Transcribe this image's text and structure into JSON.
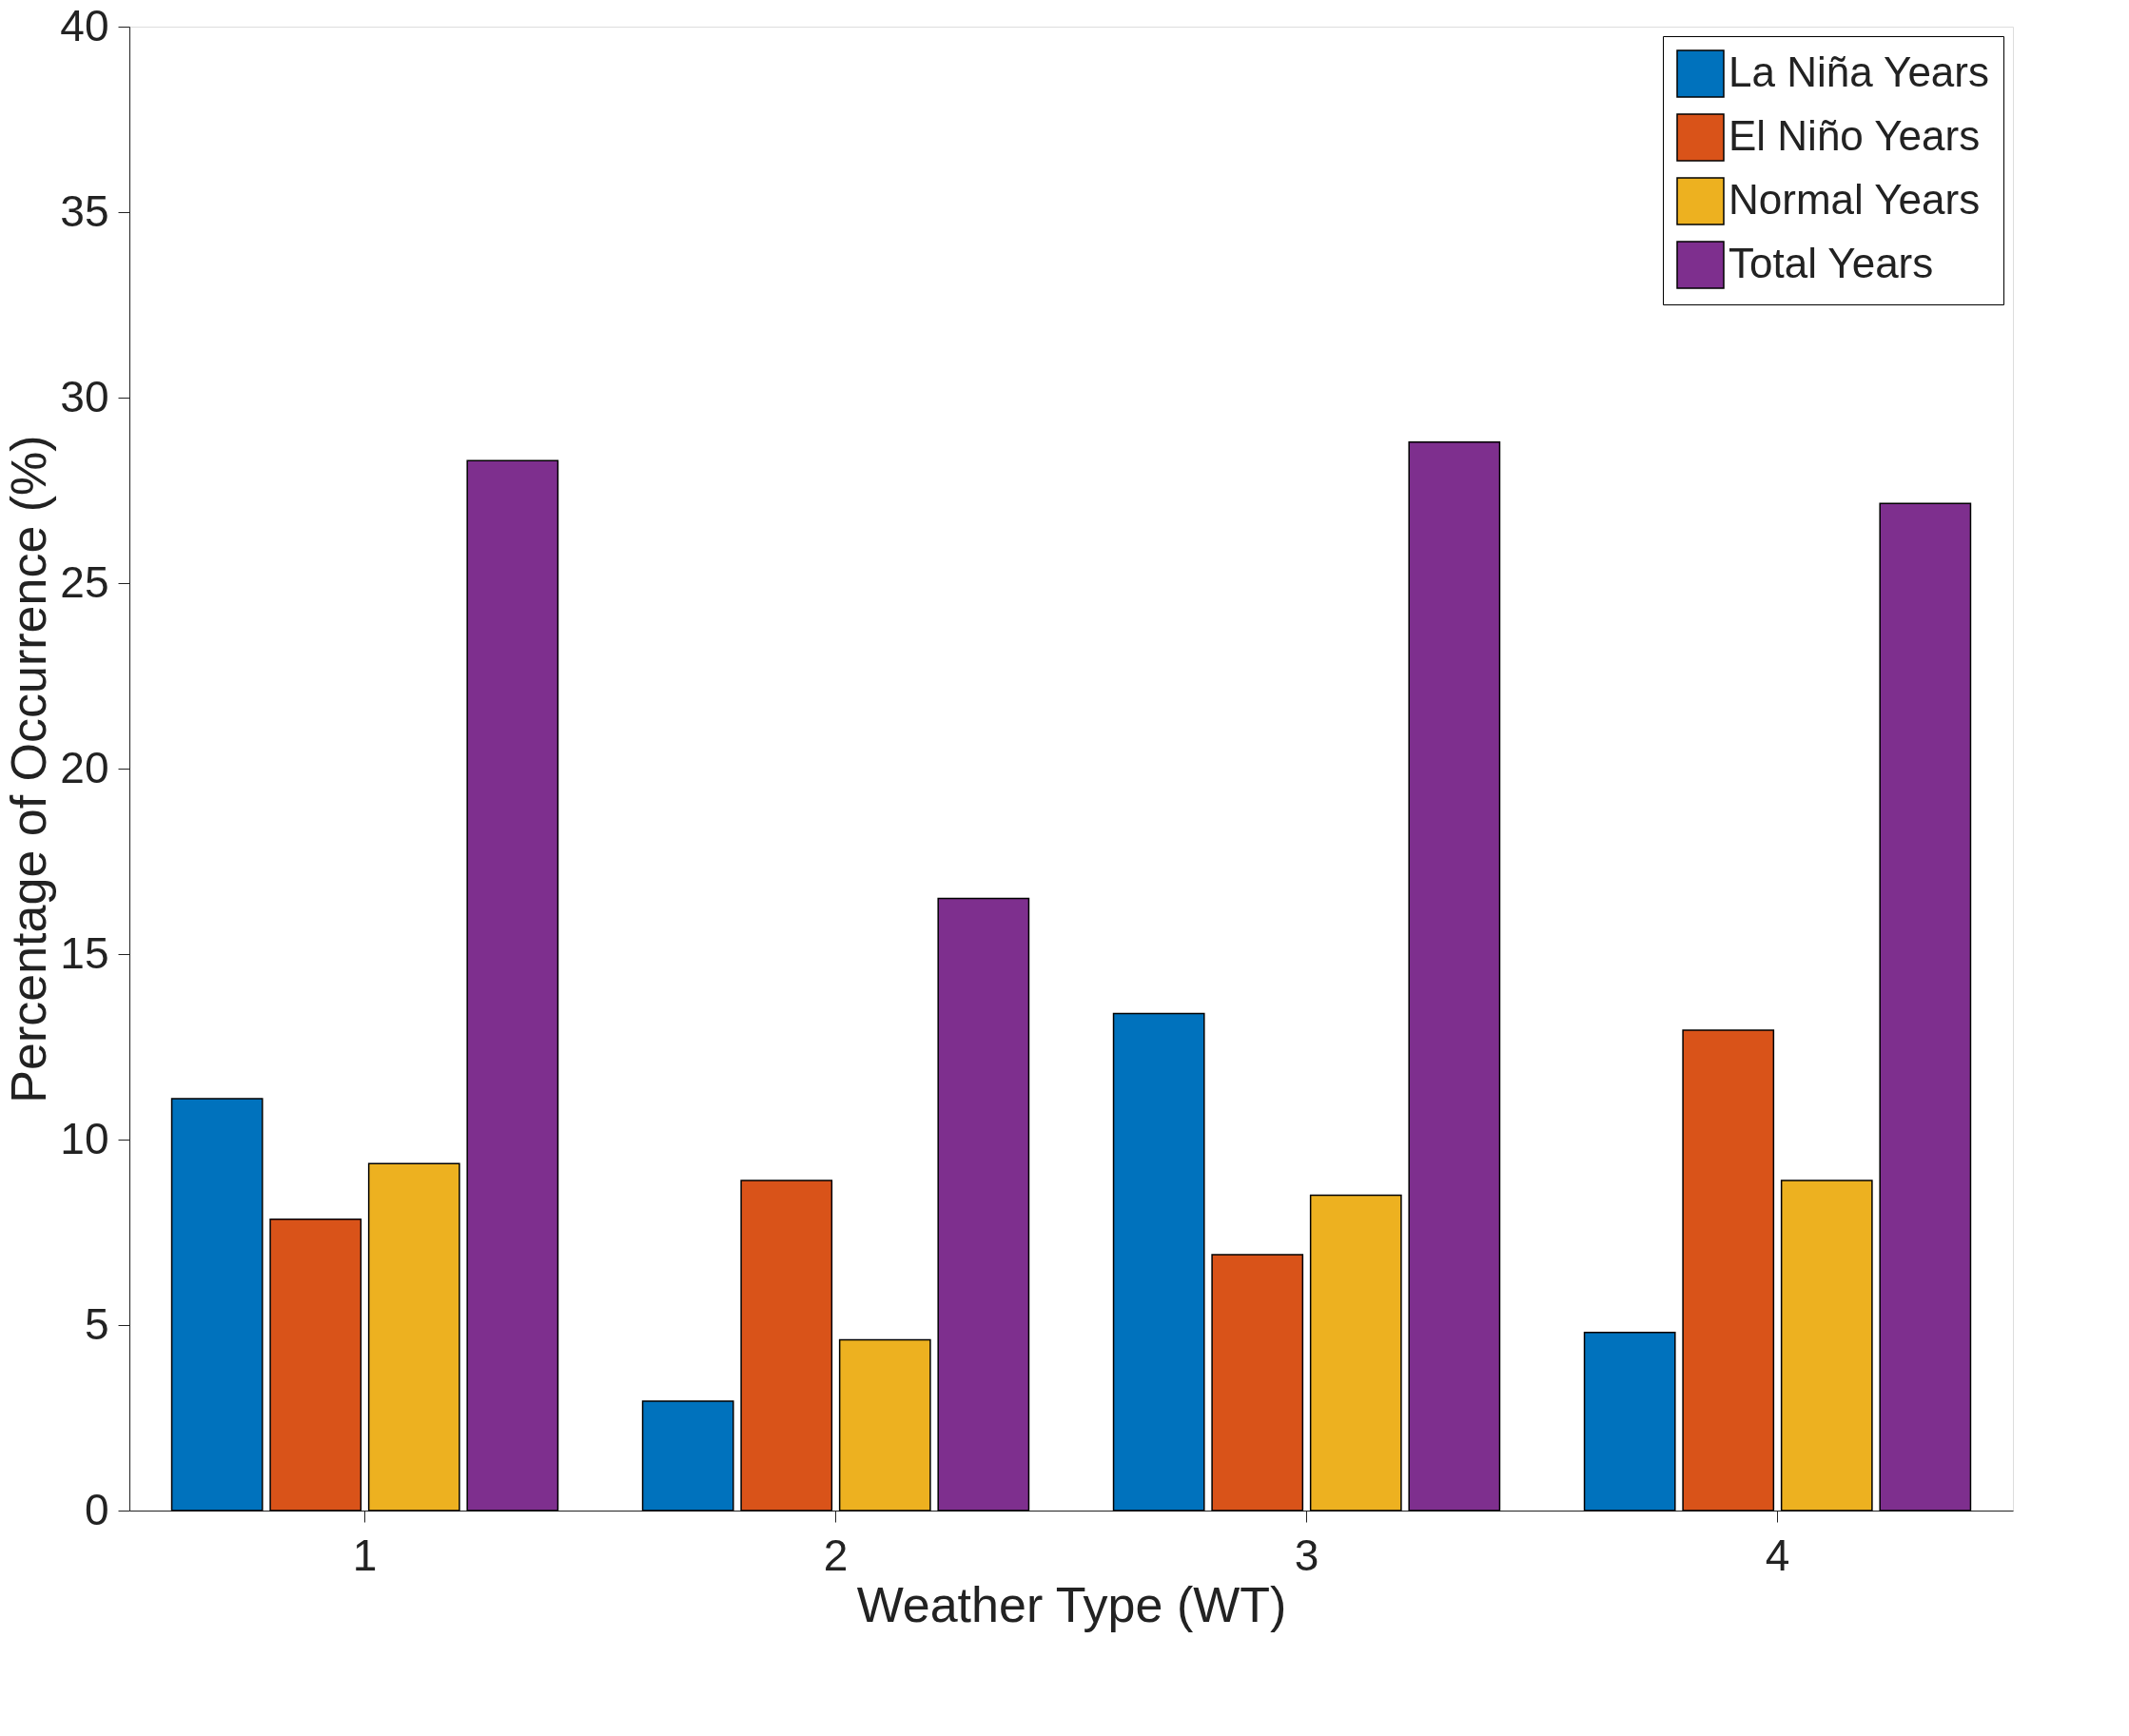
{
  "chart_data": {
    "type": "bar",
    "xlabel": "Weather Type (WT)",
    "ylabel": "Percentage of Occurrence (%)",
    "categories": [
      "1",
      "2",
      "3",
      "4"
    ],
    "series": [
      {
        "name": "La Niña Years",
        "color": "#0072bd",
        "values": [
          11.1,
          2.95,
          13.4,
          4.8
        ]
      },
      {
        "name": "El Niño Years",
        "color": "#d95319",
        "values": [
          7.85,
          8.9,
          6.9,
          12.95
        ]
      },
      {
        "name": "Normal Years",
        "color": "#edb120",
        "values": [
          9.35,
          4.6,
          8.5,
          8.9
        ]
      },
      {
        "name": "Total Years",
        "color": "#7e2f8e",
        "values": [
          28.3,
          16.5,
          28.8,
          27.15
        ]
      }
    ],
    "ylim": [
      0,
      40
    ],
    "yticks": [
      0,
      5,
      10,
      15,
      20,
      25,
      30,
      35,
      40
    ],
    "grid": false,
    "legend": "top right"
  }
}
